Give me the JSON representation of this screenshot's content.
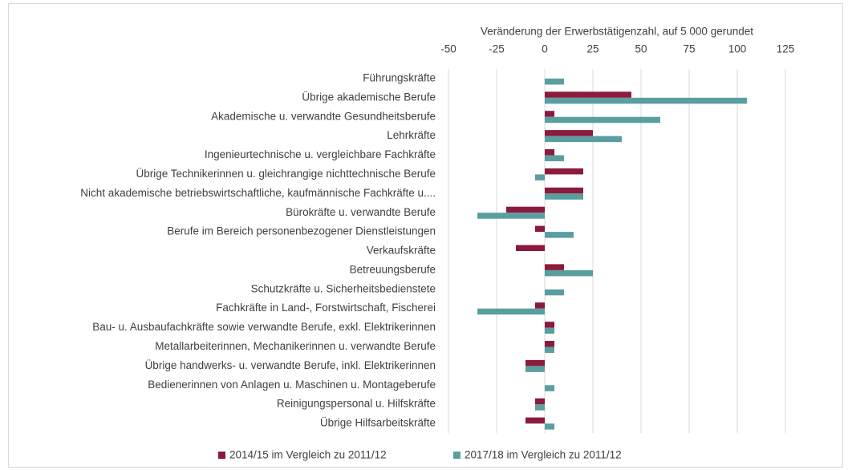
{
  "chart_data": {
    "type": "bar",
    "orientation": "horizontal",
    "x_axis_label": "Veränderung der Erwerbstätigenzahl, auf 5 000 gerundet",
    "categories": [
      "Führungskräfte",
      "Übrige akademische Berufe",
      "Akademische u. verwandte Gesundheitsberufe",
      "Lehrkräfte",
      "Ingenieurtechnische u. vergleichbare Fachkräfte",
      "Übrige Technikerinnen u. gleichrangige nichttechnische Berufe",
      "Nicht akademische betriebswirtschaftliche, kaufmännische Fachkräfte u....",
      "Bürokräfte u. verwandte Berufe",
      "Berufe im Bereich personenbezogener Dienstleistungen",
      "Verkaufskräfte",
      "Betreuungsberufe",
      "Schutzkräfte u. Sicherheitsbedienstete",
      "Fachkräfte in Land-, Forstwirtschaft, Fischerei",
      "Bau- u. Ausbaufachkräfte sowie verwandte Berufe, exkl. Elektrikerinnen",
      "Metallarbeiterinnen, Mechanikerinnen u. verwandte Berufe",
      "Übrige handwerks- u. verwandte Berufe, inkl. Elektrikerinnen",
      "Bedienerinnen von Anlagen u. Maschinen u. Montageberufe",
      "Reinigungspersonal u. Hilfskräfte",
      "Übrige Hilfsarbeitskräfte"
    ],
    "series": [
      {
        "name": "2014/15 im Vergleich zu 2011/12",
        "color": "#8b1a3c",
        "values": [
          0,
          45,
          5,
          25,
          5,
          20,
          20,
          -20,
          -5,
          -15,
          10,
          0,
          -5,
          5,
          5,
          -10,
          0,
          -5,
          -10
        ]
      },
      {
        "name": "2017/18 im Vergleich zu 2011/12",
        "color": "#5b9ea0",
        "values": [
          10,
          105,
          60,
          40,
          10,
          -5,
          20,
          -35,
          15,
          0,
          25,
          10,
          -35,
          5,
          5,
          -10,
          5,
          -5,
          5
        ]
      }
    ],
    "xlim": [
      -50,
      125
    ],
    "xticks": [
      -50,
      -25,
      0,
      25,
      50,
      75,
      100,
      125
    ],
    "grid": true,
    "legend": "bottom"
  }
}
